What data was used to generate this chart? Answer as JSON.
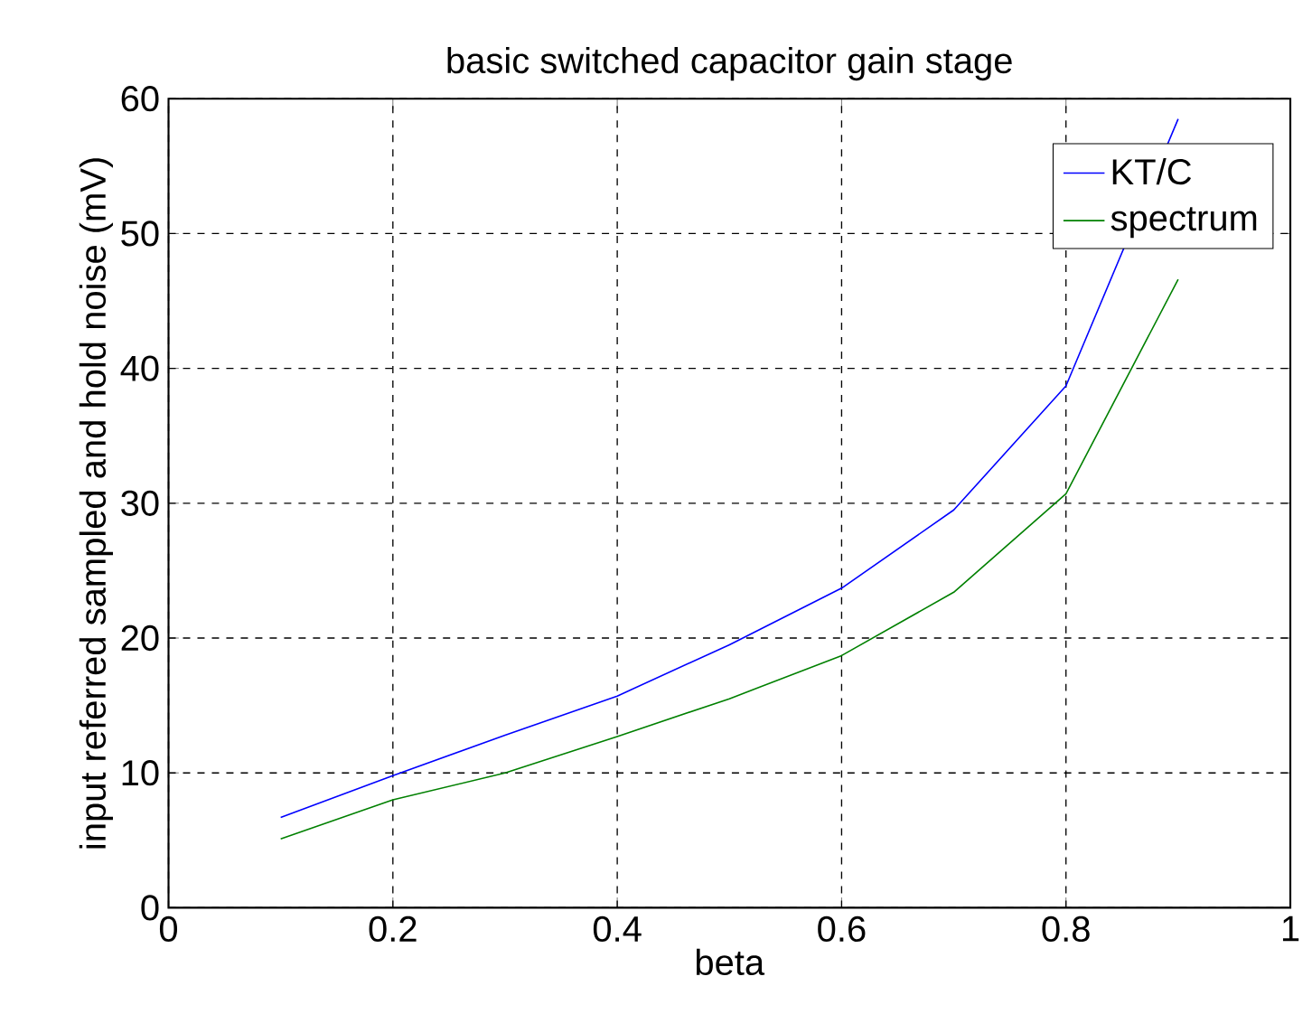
{
  "chart_data": {
    "type": "line",
    "title": "basic switched capacitor gain stage",
    "xlabel": "beta",
    "ylabel": "input referred sampled and hold noise (mV)",
    "x": [
      0.1,
      0.2,
      0.3,
      0.4,
      0.5,
      0.6,
      0.7,
      0.8,
      0.9
    ],
    "series": [
      {
        "name": "KT/C",
        "color": "#0000ff",
        "values": [
          6.7,
          9.8,
          12.8,
          15.7,
          19.5,
          23.7,
          29.5,
          38.7,
          58.5
        ]
      },
      {
        "name": "spectrum",
        "color": "#008000",
        "values": [
          5.1,
          8.0,
          10.0,
          12.7,
          15.5,
          18.7,
          23.4,
          30.7,
          46.6
        ]
      }
    ],
    "xlim": [
      0,
      1
    ],
    "ylim": [
      0,
      60
    ],
    "xticks": [
      0,
      0.2,
      0.4,
      0.6,
      0.8,
      1
    ],
    "yticks": [
      0,
      10,
      20,
      30,
      40,
      50,
      60
    ],
    "grid": true,
    "legend": "top right",
    "line_style": "solid",
    "marker": "none"
  }
}
